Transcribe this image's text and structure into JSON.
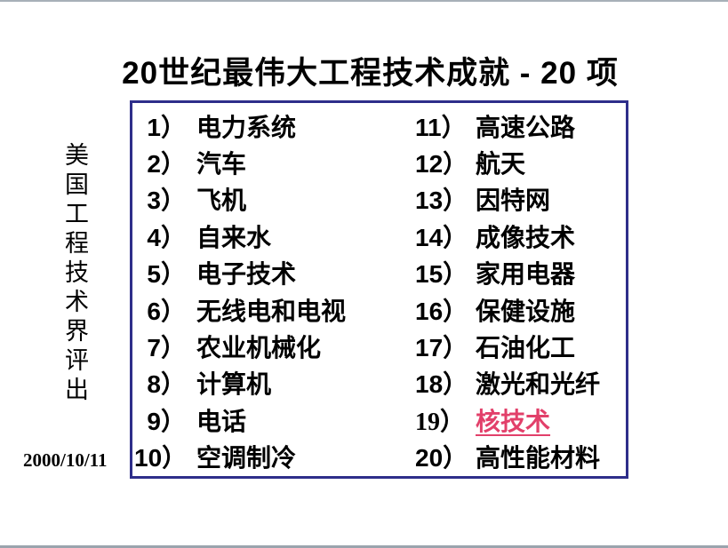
{
  "title": "20世纪最伟大工程技术成就 - 20 项",
  "side_label": "美国工程技术界评出",
  "date": "2000/10/11",
  "list": {
    "left": [
      {
        "num": "1）",
        "text": "电力系统"
      },
      {
        "num": "2）",
        "text": "汽车"
      },
      {
        "num": "3）",
        "text": "飞机"
      },
      {
        "num": "4）",
        "text": "自来水"
      },
      {
        "num": "5）",
        "text": "电子技术"
      },
      {
        "num": "6）",
        "text": "无线电和电视"
      },
      {
        "num": "7）",
        "text": "农业机械化"
      },
      {
        "num": "8）",
        "text": "计算机"
      },
      {
        "num": "9）",
        "text": "电话"
      },
      {
        "num": "10）",
        "text": "空调制冷"
      }
    ],
    "right": [
      {
        "num": "11）",
        "text": "高速公路"
      },
      {
        "num": "12）",
        "text": "航天"
      },
      {
        "num": "13）",
        "text": "因特网"
      },
      {
        "num": "14）",
        "text": "成像技术"
      },
      {
        "num": "15）",
        "text": "家用电器"
      },
      {
        "num": "16）",
        "text": "保健设施"
      },
      {
        "num": "17）",
        "text": "石油化工"
      },
      {
        "num": "18）",
        "text": "激光和光纤"
      },
      {
        "num": "19）",
        "text": "核技术"
      },
      {
        "num": "20）",
        "text": "高性能材料"
      }
    ]
  },
  "colors": {
    "box_border": "#2e2e8a",
    "link_red": "#e2406a",
    "edge_line": "#a7b0b8",
    "text": "#000000",
    "background": "#ffffff"
  }
}
